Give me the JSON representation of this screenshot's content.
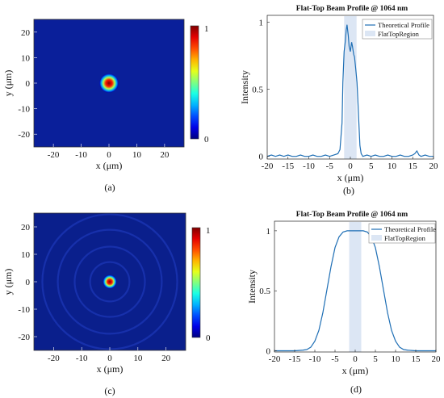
{
  "figure": {
    "captions": [
      "(a)",
      "(b)",
      "(c)",
      "(d)"
    ]
  },
  "chart_data": [
    {
      "type": "heatmap",
      "panel": "(a)",
      "xlabel": "x (μm)",
      "ylabel": "y (μm)",
      "xlim": [
        -27,
        27
      ],
      "ylim": [
        -25,
        25
      ],
      "xticks": [
        -20,
        -10,
        0,
        10,
        20
      ],
      "yticks": [
        -20,
        -10,
        0,
        10,
        20
      ],
      "colorbar": {
        "min": 0,
        "max": 1,
        "tick_labels": [
          "0",
          "1"
        ],
        "colormap": "jet"
      },
      "description_values": {
        "background": 0.05,
        "spot_center": [
          0,
          0
        ],
        "spot_radius": 1.7,
        "peak": 1.0,
        "rings": false
      },
      "colors": {
        "background": "#0a1f9a",
        "peak": "#8b0000"
      }
    },
    {
      "type": "line",
      "panel": "(b)",
      "title": "Flat-Top Beam Profile @ 1064 nm",
      "xlabel": "x (μm)",
      "ylabel": "Intensity",
      "xlim": [
        -20,
        20
      ],
      "ylim": [
        -0.02,
        1.05
      ],
      "xticks": [
        -20,
        -15,
        -10,
        -5,
        0,
        5,
        10,
        15,
        20
      ],
      "yticks": [
        0,
        0.5,
        1
      ],
      "ytick_labels": [
        "0",
        "0.5",
        "1"
      ],
      "legend": [
        "Theoretical Profile",
        "FlatTopRegion"
      ],
      "legend_position": "top-right",
      "flat_top_region": [
        -1.5,
        1.5
      ],
      "series": [
        {
          "name": "Theoretical Profile",
          "x": [
            -20,
            -19,
            -18,
            -17,
            -16,
            -15,
            -14,
            -13,
            -12,
            -11,
            -10,
            -9,
            -8,
            -7,
            -6,
            -5,
            -4,
            -3,
            -2.5,
            -2,
            -1.8,
            -1.5,
            -1.2,
            -1,
            -0.8,
            -0.5,
            -0.3,
            0,
            0.3,
            0.5,
            0.8,
            1,
            1.3,
            1.6,
            1.8,
            2,
            2.3,
            2.6,
            3,
            4,
            5,
            6,
            7,
            8,
            9,
            10,
            11,
            12,
            13,
            14,
            15,
            15.5,
            16,
            16.5,
            17,
            18,
            19,
            20
          ],
          "y": [
            0.0,
            0.01,
            0.0,
            0.01,
            0.0,
            0.01,
            0.0,
            0.0,
            0.01,
            0.0,
            0.0,
            0.01,
            0.0,
            0.0,
            0.01,
            0.0,
            0.01,
            0.02,
            0.05,
            0.25,
            0.55,
            0.78,
            0.86,
            0.94,
            0.98,
            0.9,
            0.82,
            0.78,
            0.85,
            0.82,
            0.76,
            0.74,
            0.65,
            0.55,
            0.42,
            0.28,
            0.08,
            0.02,
            0.0,
            0.01,
            0.0,
            0.01,
            0.0,
            0.0,
            0.01,
            0.0,
            0.0,
            0.01,
            0.0,
            0.0,
            0.01,
            0.02,
            0.04,
            0.01,
            0.0,
            0.01,
            0.0,
            0.0
          ]
        }
      ],
      "colors": {
        "line": "#1f6fb5",
        "region": "#dce6f4"
      }
    },
    {
      "type": "heatmap",
      "panel": "(c)",
      "xlabel": "x (μm)",
      "ylabel": "y (μm)",
      "xlim": [
        -27,
        27
      ],
      "ylim": [
        -25,
        25
      ],
      "xticks": [
        -20,
        -10,
        0,
        10,
        20
      ],
      "yticks": [
        -20,
        -10,
        0,
        10,
        20
      ],
      "colorbar": {
        "min": 0,
        "max": 1,
        "tick_labels": [
          "0",
          "1"
        ],
        "colormap": "jet"
      },
      "description_values": {
        "background": 0.06,
        "spot_center": [
          0,
          0
        ],
        "spot_radius": 1.2,
        "peak": 1.0,
        "rings": true,
        "ring_radii": [
          7,
          12.5,
          18.5,
          24
        ]
      },
      "colors": {
        "background": "#0a1f8c",
        "peak": "#8b0000"
      }
    },
    {
      "type": "line",
      "panel": "(d)",
      "title": "Flat-Top Beam Profile @ 1064 nm",
      "xlabel": "x (μm)",
      "ylabel": "Intensity",
      "xlim": [
        -20,
        20
      ],
      "ylim": [
        -0.01,
        1.08
      ],
      "xticks": [
        -20,
        -15,
        -10,
        -5,
        0,
        5,
        10,
        15,
        20
      ],
      "yticks": [
        0,
        0.5,
        1
      ],
      "ytick_labels": [
        "0",
        "0.5",
        "1"
      ],
      "legend": [
        "Theoretical Profile",
        "FlatTopRegion"
      ],
      "legend_position": "top-right",
      "flat_top_region": [
        -1.5,
        1.5
      ],
      "series": [
        {
          "name": "Theoretical Profile",
          "x": [
            -20,
            -15,
            -13,
            -12,
            -11,
            -10,
            -9,
            -8,
            -7,
            -6,
            -5,
            -4,
            -3,
            -2,
            -1,
            0,
            1,
            2,
            3,
            4,
            5,
            6,
            7,
            8,
            9,
            10,
            11,
            12,
            13,
            15,
            20
          ],
          "y": [
            0.0,
            0.0,
            0.005,
            0.01,
            0.03,
            0.08,
            0.17,
            0.32,
            0.51,
            0.7,
            0.86,
            0.95,
            0.99,
            1.0,
            1.0,
            1.0,
            1.0,
            1.0,
            0.99,
            0.95,
            0.86,
            0.7,
            0.51,
            0.32,
            0.17,
            0.08,
            0.03,
            0.01,
            0.005,
            0.0,
            0.0
          ]
        }
      ],
      "colors": {
        "line": "#1f6fb5",
        "region": "#dce6f4"
      }
    }
  ]
}
